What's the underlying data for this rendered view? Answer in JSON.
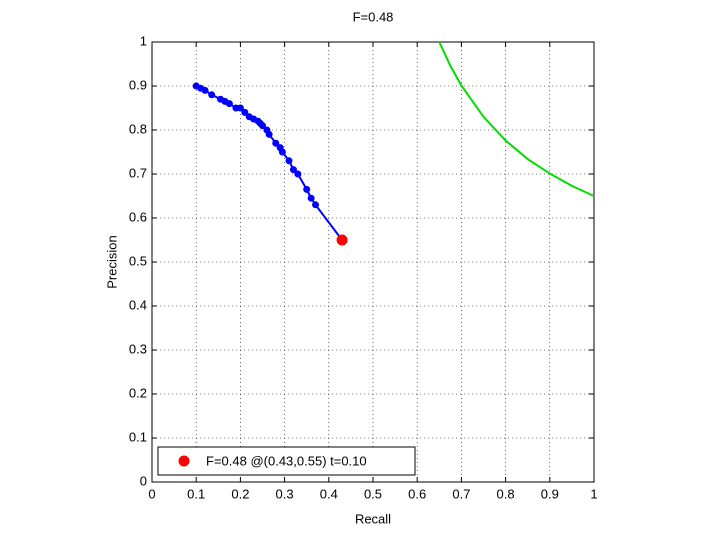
{
  "chart_data": {
    "type": "line",
    "title": "F=0.48",
    "x_label": "Recall",
    "y_label": "Precision",
    "xlim": [
      0,
      1
    ],
    "ylim": [
      0,
      1
    ],
    "xticks": [
      0,
      0.1,
      0.2,
      0.3,
      0.4,
      0.5,
      0.6,
      0.7,
      0.8,
      0.9,
      1
    ],
    "yticks": [
      0,
      0.1,
      0.2,
      0.3,
      0.4,
      0.5,
      0.6,
      0.7,
      0.8,
      0.9,
      1
    ],
    "grid": true,
    "legend": "lower left",
    "series": [
      {
        "color": "#0000ff",
        "markers": true,
        "x": [
          0.1,
          0.11,
          0.12,
          0.135,
          0.155,
          0.165,
          0.175,
          0.19,
          0.2,
          0.21,
          0.22,
          0.23,
          0.24,
          0.245,
          0.25,
          0.26,
          0.265,
          0.28,
          0.29,
          0.295,
          0.31,
          0.32,
          0.33,
          0.35,
          0.36,
          0.37,
          0.43
        ],
        "values": [
          0.9,
          0.895,
          0.89,
          0.88,
          0.87,
          0.865,
          0.86,
          0.85,
          0.85,
          0.84,
          0.83,
          0.825,
          0.82,
          0.815,
          0.81,
          0.8,
          0.79,
          0.77,
          0.76,
          0.75,
          0.73,
          0.71,
          0.7,
          0.665,
          0.645,
          0.63,
          0.55
        ]
      },
      {
        "color": "#00dd00",
        "markers": false,
        "x": [
          0.65,
          0.675,
          0.7,
          0.75,
          0.8,
          0.85,
          0.9,
          0.95,
          1.0
        ],
        "values": [
          1.0,
          0.946,
          0.901,
          0.83,
          0.776,
          0.734,
          0.701,
          0.673,
          0.65
        ]
      },
      {
        "name": "F=0.48 @(0.43,0.55) t=0.10",
        "color": "#ff0000",
        "markers": true,
        "x": [
          0.43
        ],
        "values": [
          0.55
        ]
      }
    ]
  }
}
